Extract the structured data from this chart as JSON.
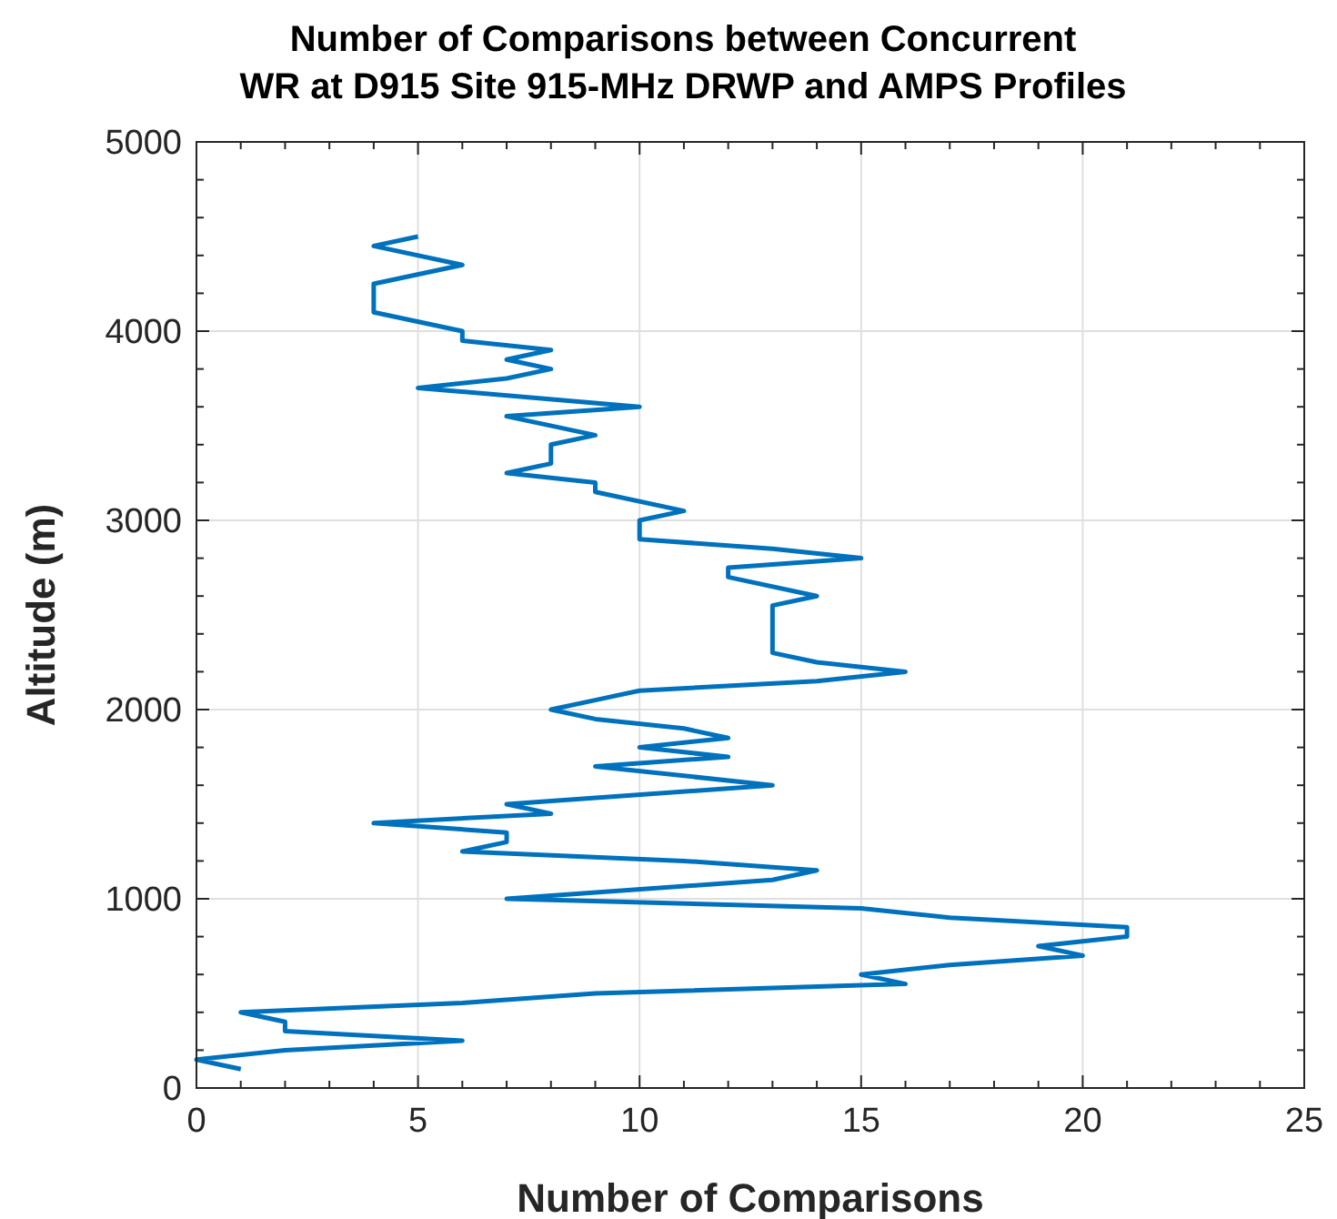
{
  "chart_data": {
    "type": "line",
    "title": "Number of Comparisons between Concurrent\nWR at D915 Site 915-MHz DRWP and AMPS Profiles",
    "xlabel": "Number of Comparisons",
    "ylabel": "Altitude (m)",
    "series": [
      {
        "color": "#0072bd",
        "x": [
          1,
          0,
          2,
          6,
          2,
          2,
          1,
          6,
          9,
          16,
          15,
          17,
          20,
          19,
          21,
          21,
          17,
          15,
          7,
          13,
          14,
          11,
          6,
          7,
          7,
          4,
          8,
          7,
          13,
          9,
          12,
          10,
          12,
          11,
          9,
          8,
          9,
          10,
          14,
          16,
          14,
          13,
          13,
          14,
          12,
          12,
          15,
          13,
          10,
          10,
          11,
          9,
          9,
          7,
          8,
          8,
          9,
          7,
          10,
          5,
          7,
          8,
          7,
          8,
          6,
          6,
          4,
          4,
          6,
          4,
          5
        ],
        "values": [
          100,
          150,
          200,
          250,
          300,
          350,
          400,
          450,
          500,
          550,
          600,
          650,
          700,
          750,
          800,
          850,
          900,
          950,
          1000,
          1100,
          1150,
          1200,
          1250,
          1300,
          1350,
          1400,
          1450,
          1500,
          1600,
          1700,
          1750,
          1800,
          1850,
          1900,
          1950,
          2000,
          2050,
          2100,
          2150,
          2200,
          2250,
          2300,
          2550,
          2600,
          2700,
          2750,
          2800,
          2850,
          2900,
          3000,
          3050,
          3150,
          3200,
          3250,
          3300,
          3400,
          3450,
          3550,
          3600,
          3700,
          3750,
          3800,
          3850,
          3900,
          3950,
          4000,
          4100,
          4250,
          4350,
          4450,
          4500
        ]
      }
    ],
    "xlim": [
      0,
      25
    ],
    "xticks": [
      0,
      {
        "value": 1,
        "label": null
      },
      {
        "value": 2,
        "label": null
      },
      {
        "value": 3,
        "label": null
      },
      {
        "value": 4,
        "label": null
      },
      5,
      {
        "value": 6,
        "label": null
      },
      {
        "value": 7,
        "label": null
      },
      {
        "value": 8,
        "label": null
      },
      {
        "value": 9,
        "label": null
      },
      10,
      {
        "value": 11,
        "label": null
      },
      {
        "value": 12,
        "label": null
      },
      {
        "value": 13,
        "label": null
      },
      {
        "value": 14,
        "label": null
      },
      15,
      {
        "value": 16,
        "label": null
      },
      {
        "value": 17,
        "label": null
      },
      {
        "value": 18,
        "label": null
      },
      {
        "value": 19,
        "label": null
      },
      20,
      {
        "value": 21,
        "label": null
      },
      {
        "value": 22,
        "label": null
      },
      {
        "value": 23,
        "label": null
      },
      {
        "value": 24,
        "label": null
      },
      25
    ],
    "ylim": [
      0,
      5000
    ],
    "yticks": [
      0,
      {
        "value": 200,
        "label": null
      },
      {
        "value": 400,
        "label": null
      },
      {
        "value": 600,
        "label": null
      },
      {
        "value": 800,
        "label": null
      },
      1000,
      {
        "value": 1200,
        "label": null
      },
      {
        "value": 1400,
        "label": null
      },
      {
        "value": 1600,
        "label": null
      },
      {
        "value": 1800,
        "label": null
      },
      2000,
      {
        "value": 2200,
        "label": null
      },
      {
        "value": 2400,
        "label": null
      },
      {
        "value": 2600,
        "label": null
      },
      {
        "value": 2800,
        "label": null
      },
      3000,
      {
        "value": 3200,
        "label": null
      },
      {
        "value": 3400,
        "label": null
      },
      {
        "value": 3600,
        "label": null
      },
      {
        "value": 3800,
        "label": null
      },
      4000,
      {
        "value": 4200,
        "label": null
      },
      {
        "value": 4400,
        "label": null
      },
      {
        "value": 4600,
        "label": null
      },
      {
        "value": 4800,
        "label": null
      },
      5000
    ],
    "grid": true,
    "line_style": "solid"
  }
}
